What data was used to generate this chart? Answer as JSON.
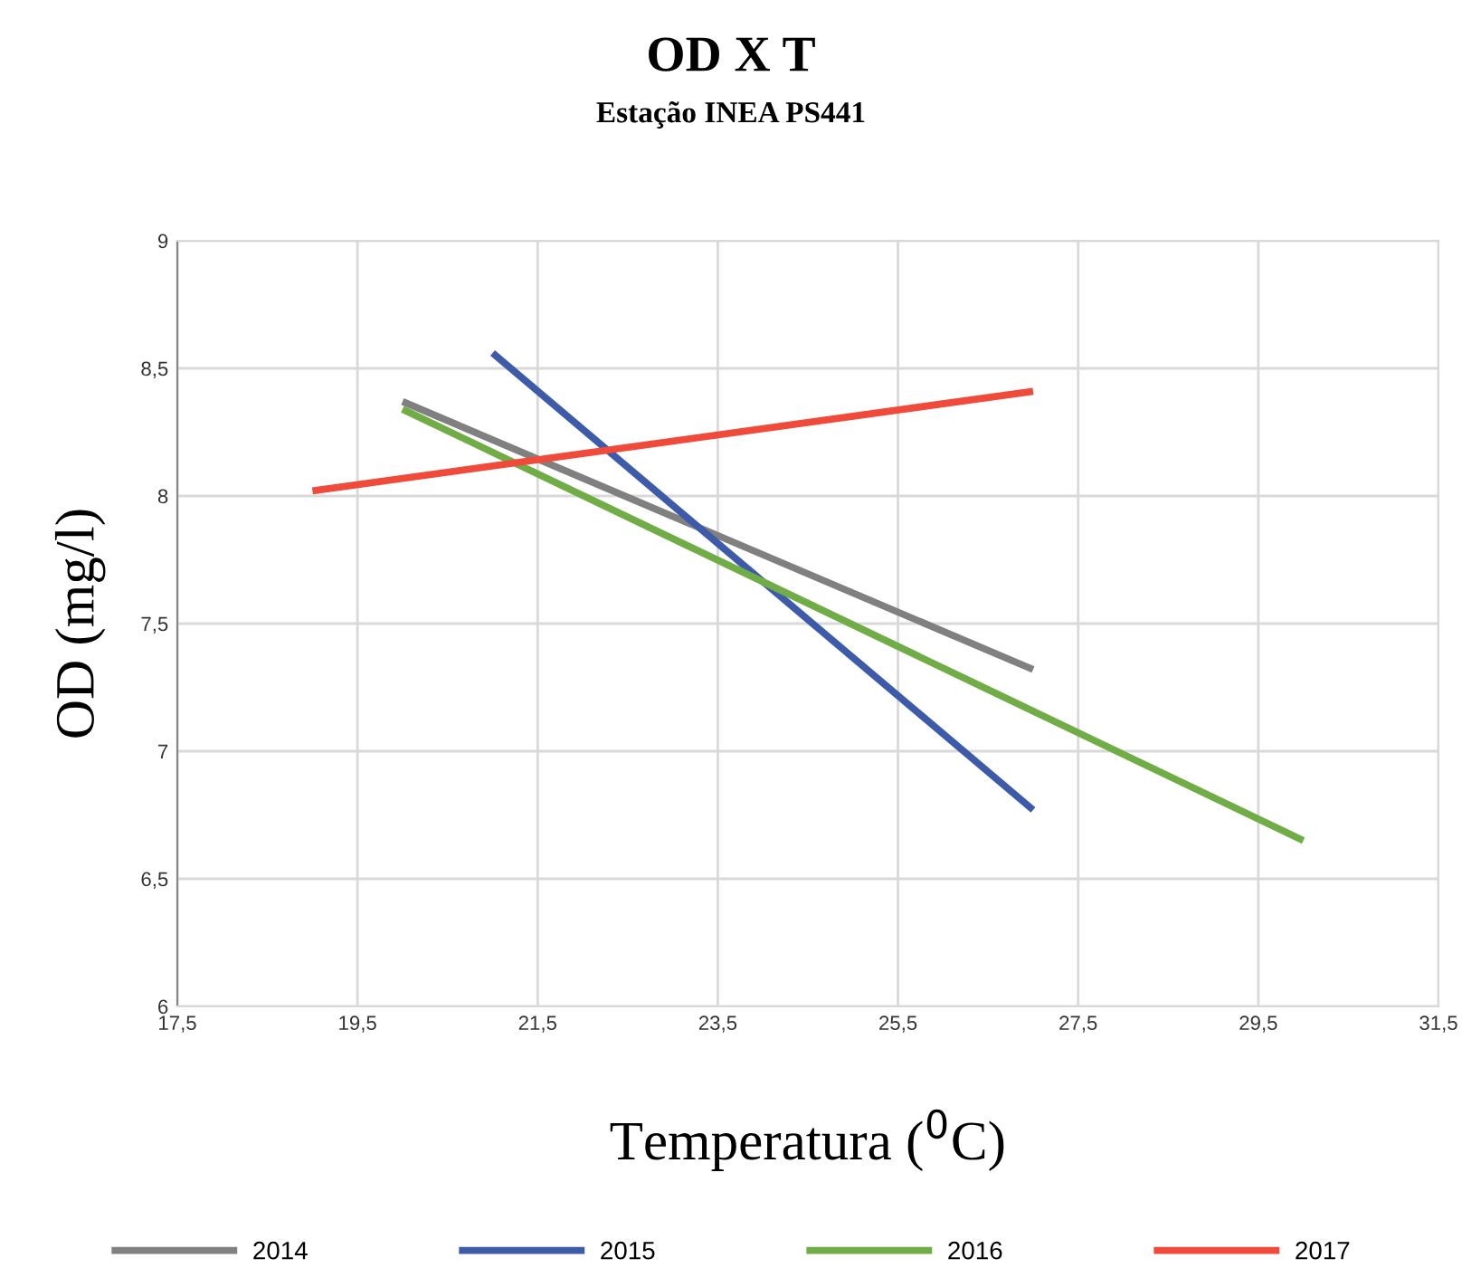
{
  "chart_data": {
    "type": "line",
    "title": "OD X T",
    "subtitle": "Estação INEA PS441",
    "xlabel": "Temperatura ($^{0}$C)",
    "ylabel": "OD (mg/l)",
    "series": [
      {
        "name": "2014",
        "color": "#808080",
        "x": [
          20,
          27
        ],
        "values": [
          8.37,
          7.32
        ]
      },
      {
        "name": "2015",
        "color": "#3e5ba9",
        "x": [
          21,
          27
        ],
        "values": [
          8.56,
          6.77
        ]
      },
      {
        "name": "2016",
        "color": "#70ad47",
        "x": [
          20,
          30
        ],
        "values": [
          8.34,
          6.65
        ]
      },
      {
        "name": "2017",
        "color": "#f04a3a",
        "x": [
          19,
          27
        ],
        "values": [
          8.02,
          8.41
        ]
      }
    ],
    "xlim": [
      17.5,
      31.5
    ],
    "xticks": [
      {
        "value": 17.5,
        "label": "17,5"
      },
      {
        "value": 19.5,
        "label": "19,5"
      },
      {
        "value": 21.5,
        "label": "21,5"
      },
      {
        "value": 23.5,
        "label": "23,5"
      },
      {
        "value": 25.5,
        "label": "25,5"
      },
      {
        "value": 27.5,
        "label": "27,5"
      },
      {
        "value": 29.5,
        "label": "29,5"
      },
      {
        "value": 31.5,
        "label": "31,5"
      }
    ],
    "ylim": [
      6,
      9
    ],
    "yticks": [
      6,
      {
        "value": 6.5,
        "label": "6,5"
      },
      7,
      {
        "value": 7.5,
        "label": "7,5"
      },
      8,
      {
        "value": 8.5,
        "label": "8,5"
      },
      9
    ],
    "grid": true,
    "legend": "bottom",
    "marker": "none",
    "line_style": "solid"
  }
}
